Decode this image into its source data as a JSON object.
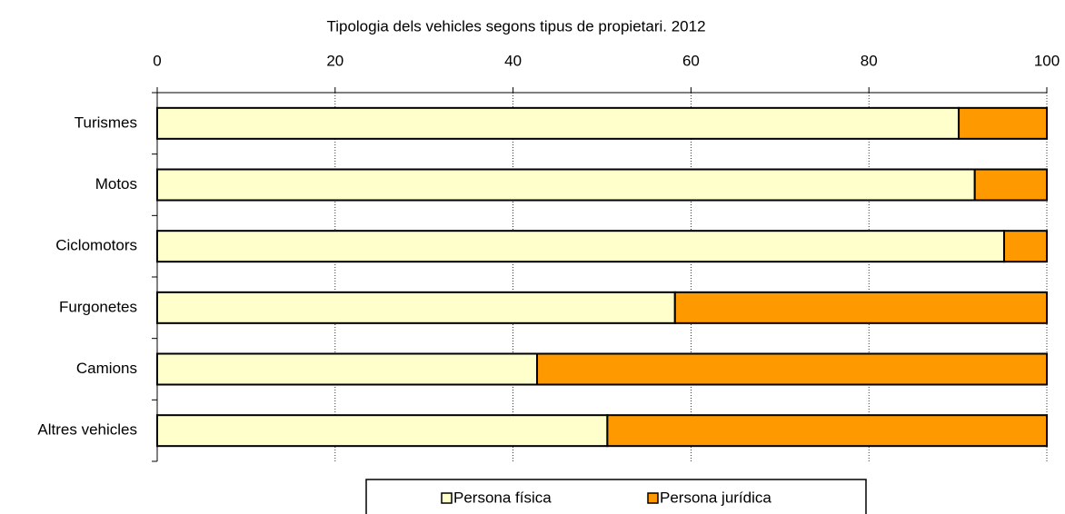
{
  "chart_data": {
    "type": "stacked_bar_horizontal",
    "title": "Tipologia dels vehicles segons tipus de propietari. 2012",
    "categories": [
      "Turismes",
      "Motos",
      "Ciclomotors",
      "Furgonetes",
      "Camions",
      "Altres vehicles"
    ],
    "series": [
      {
        "name": "Persona física",
        "color": "#ffffcc",
        "values": [
          90.1,
          91.9,
          95.2,
          58.2,
          42.7,
          50.6
        ]
      },
      {
        "name": "Persona jurídica",
        "color": "#ff9900",
        "values": [
          9.9,
          8.1,
          4.8,
          41.8,
          57.3,
          49.4
        ]
      }
    ],
    "xlim": [
      0,
      100
    ],
    "xticks": [
      0,
      20,
      40,
      60,
      80,
      100
    ],
    "grid": true,
    "legend": "bottom"
  }
}
